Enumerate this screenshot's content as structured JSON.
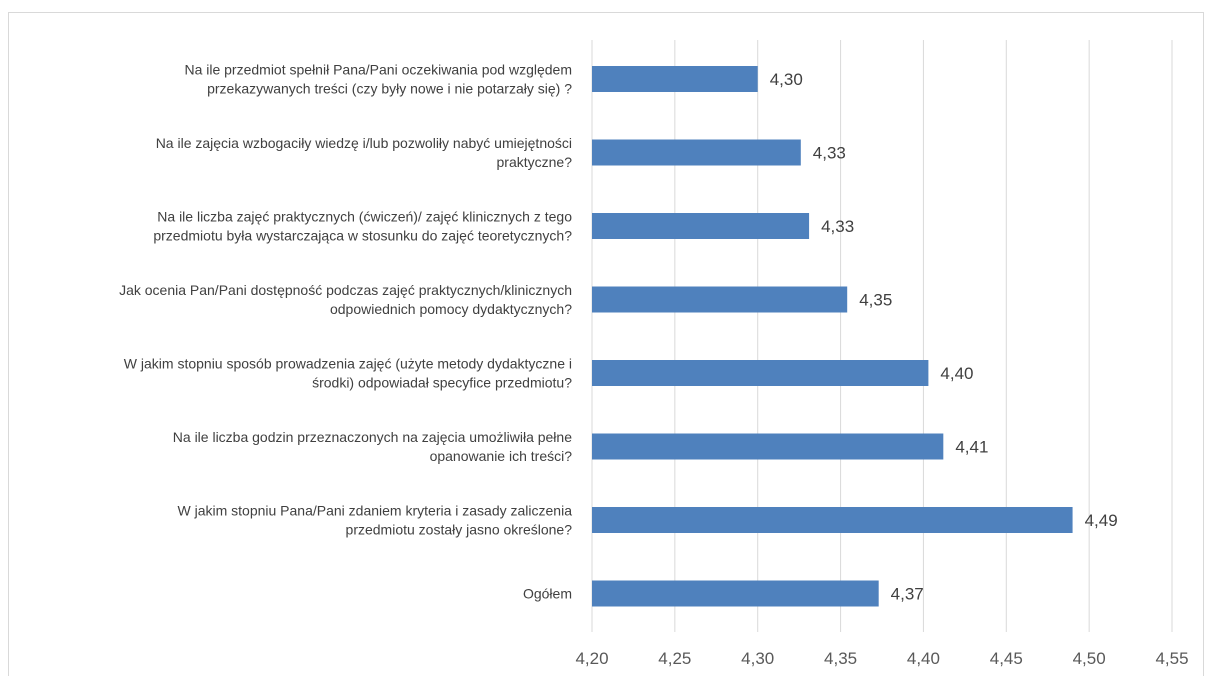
{
  "chart_data": {
    "type": "bar",
    "orientation": "horizontal",
    "categories": [
      [
        "Na ile przedmiot spełnił Pana/Pani oczekiwania pod względem",
        "przekazywanych treści (czy były nowe i nie potarzały się) ?"
      ],
      [
        "Na ile zajęcia wzbogaciły wiedzę i/lub pozwoliły nabyć umiejętności",
        "praktyczne?"
      ],
      [
        "Na ile liczba zajęć praktycznych (ćwiczeń)/ zajęć klinicznych z tego",
        "przedmiotu była wystarczająca w stosunku do zajęć teoretycznych?"
      ],
      [
        "Jak ocenia Pan/Pani dostępność podczas zajęć praktycznych/klinicznych",
        "odpowiednich pomocy dydaktycznych?"
      ],
      [
        "W jakim stopniu sposób prowadzenia zajęć (użyte metody dydaktyczne i",
        "środki) odpowiadał specyfice przedmiotu?"
      ],
      [
        "Na ile liczba godzin przeznaczonych na zajęcia umożliwiła pełne",
        "opanowanie ich treści?"
      ],
      [
        "W jakim stopniu Pana/Pani zdaniem kryteria i zasady zaliczenia",
        "przedmiotu zostały jasno określone?"
      ],
      [
        "Ogółem"
      ]
    ],
    "values": [
      4.3,
      4.326,
      4.331,
      4.354,
      4.403,
      4.412,
      4.49,
      4.373
    ],
    "data_labels": [
      "4,30",
      "4,33",
      "4,33",
      "4,35",
      "4,40",
      "4,41",
      "4,49",
      "4,37"
    ],
    "xlim": [
      4.2,
      4.55
    ],
    "xticks": [
      4.2,
      4.25,
      4.3,
      4.35,
      4.4,
      4.45,
      4.5,
      4.55
    ],
    "xtick_labels": [
      "4,20",
      "4,25",
      "4,30",
      "4,35",
      "4,40",
      "4,45",
      "4,50",
      "4,55"
    ],
    "grid": true,
    "bar_color": "#4f81bd",
    "grid_color": "#d9d9d9",
    "title": "",
    "xlabel": "",
    "ylabel": ""
  }
}
